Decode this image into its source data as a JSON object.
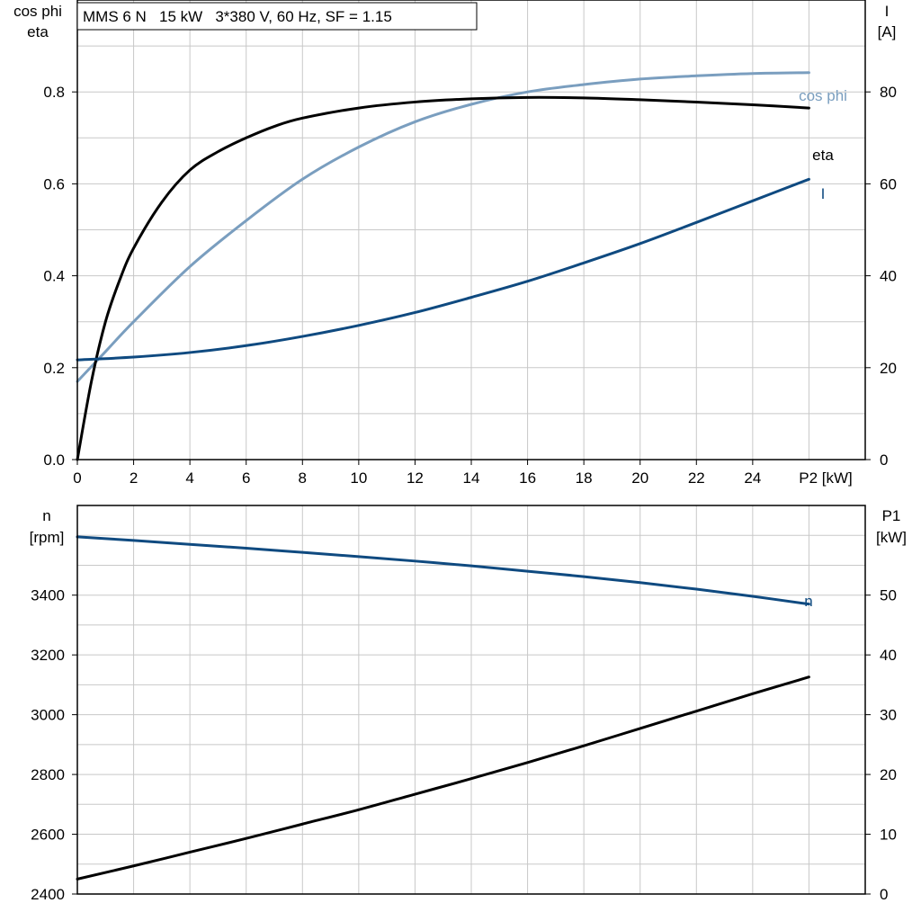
{
  "title": "MMS 6 N   15 kW   3*380 V, 60 Hz, SF = 1.15",
  "colors": {
    "eta": "#000000",
    "cosphi": "#7a9ebf",
    "current": "#0f4a80",
    "speed": "#0f4a80",
    "p1": "#000000",
    "grid": "#c8c8c8"
  },
  "chart_data": [
    {
      "type": "line",
      "x_label": "P2 [kW]",
      "x_ticks": [
        "0",
        "2",
        "4",
        "6",
        "8",
        "10",
        "12",
        "14",
        "16",
        "18",
        "20",
        "22",
        "24"
      ],
      "xlim": [
        0,
        28
      ],
      "y_left": {
        "label_line1": "cos phi",
        "label_line2": "eta",
        "lim": [
          0,
          1.0
        ],
        "ticks": [
          "0.0",
          "0.2",
          "0.4",
          "0.6",
          "0.8"
        ]
      },
      "y_right": {
        "label_line1": "I",
        "label_line2": "[A]",
        "lim": [
          0,
          100
        ],
        "ticks": [
          "0",
          "20",
          "40",
          "60",
          "80"
        ]
      },
      "grid": true,
      "series": [
        {
          "name": "eta",
          "axis": "left",
          "x": [
            0,
            0.5,
            1,
            1.5,
            2,
            3,
            4,
            5,
            6,
            7,
            8,
            10,
            12,
            14,
            16,
            18,
            20,
            22,
            24,
            26
          ],
          "y": [
            0,
            0.17,
            0.3,
            0.39,
            0.46,
            0.56,
            0.63,
            0.67,
            0.7,
            0.725,
            0.743,
            0.765,
            0.778,
            0.785,
            0.788,
            0.787,
            0.783,
            0.778,
            0.772,
            0.765
          ]
        },
        {
          "name": "cos phi",
          "axis": "left",
          "x": [
            0,
            1,
            2,
            4,
            6,
            8,
            10,
            12,
            14,
            16,
            18,
            20,
            22,
            24,
            26
          ],
          "y": [
            0.17,
            0.235,
            0.3,
            0.42,
            0.52,
            0.61,
            0.68,
            0.735,
            0.773,
            0.8,
            0.816,
            0.828,
            0.835,
            0.84,
            0.842
          ]
        },
        {
          "name": "I",
          "axis": "right",
          "x": [
            0,
            2,
            4,
            6,
            8,
            10,
            12,
            14,
            16,
            18,
            20,
            22,
            24,
            26
          ],
          "y": [
            21.7,
            22.3,
            23.3,
            24.8,
            26.8,
            29.2,
            32.0,
            35.3,
            38.8,
            42.8,
            47.0,
            51.6,
            56.3,
            61.0
          ]
        }
      ]
    },
    {
      "type": "line",
      "x_label": "",
      "xlim": [
        0,
        28
      ],
      "y_left": {
        "label_line1": "n",
        "label_line2": "[rpm]",
        "lim": [
          2400,
          3700
        ],
        "ticks": [
          "2400",
          "2600",
          "2800",
          "3000",
          "3200",
          "3400"
        ]
      },
      "y_right": {
        "label_line1": "P1",
        "label_line2": "[kW]",
        "lim": [
          0,
          65
        ],
        "ticks": [
          "0",
          "10",
          "20",
          "30",
          "40",
          "50"
        ]
      },
      "grid": true,
      "series": [
        {
          "name": "n",
          "axis": "left",
          "x": [
            0,
            2,
            4,
            6,
            8,
            10,
            12,
            14,
            16,
            18,
            20,
            22,
            24,
            26
          ],
          "y": [
            3595,
            3583,
            3570,
            3557,
            3543,
            3529,
            3514,
            3498,
            3480,
            3462,
            3442,
            3420,
            3396,
            3370
          ]
        },
        {
          "name": "P1",
          "axis": "right",
          "x": [
            0,
            2,
            4,
            6,
            8,
            10,
            12,
            14,
            16,
            18,
            20,
            22,
            24,
            26
          ],
          "y": [
            2.5,
            4.7,
            7.0,
            9.3,
            11.7,
            14.1,
            16.7,
            19.3,
            22.0,
            24.8,
            27.7,
            30.6,
            33.5,
            36.3
          ]
        }
      ]
    }
  ]
}
